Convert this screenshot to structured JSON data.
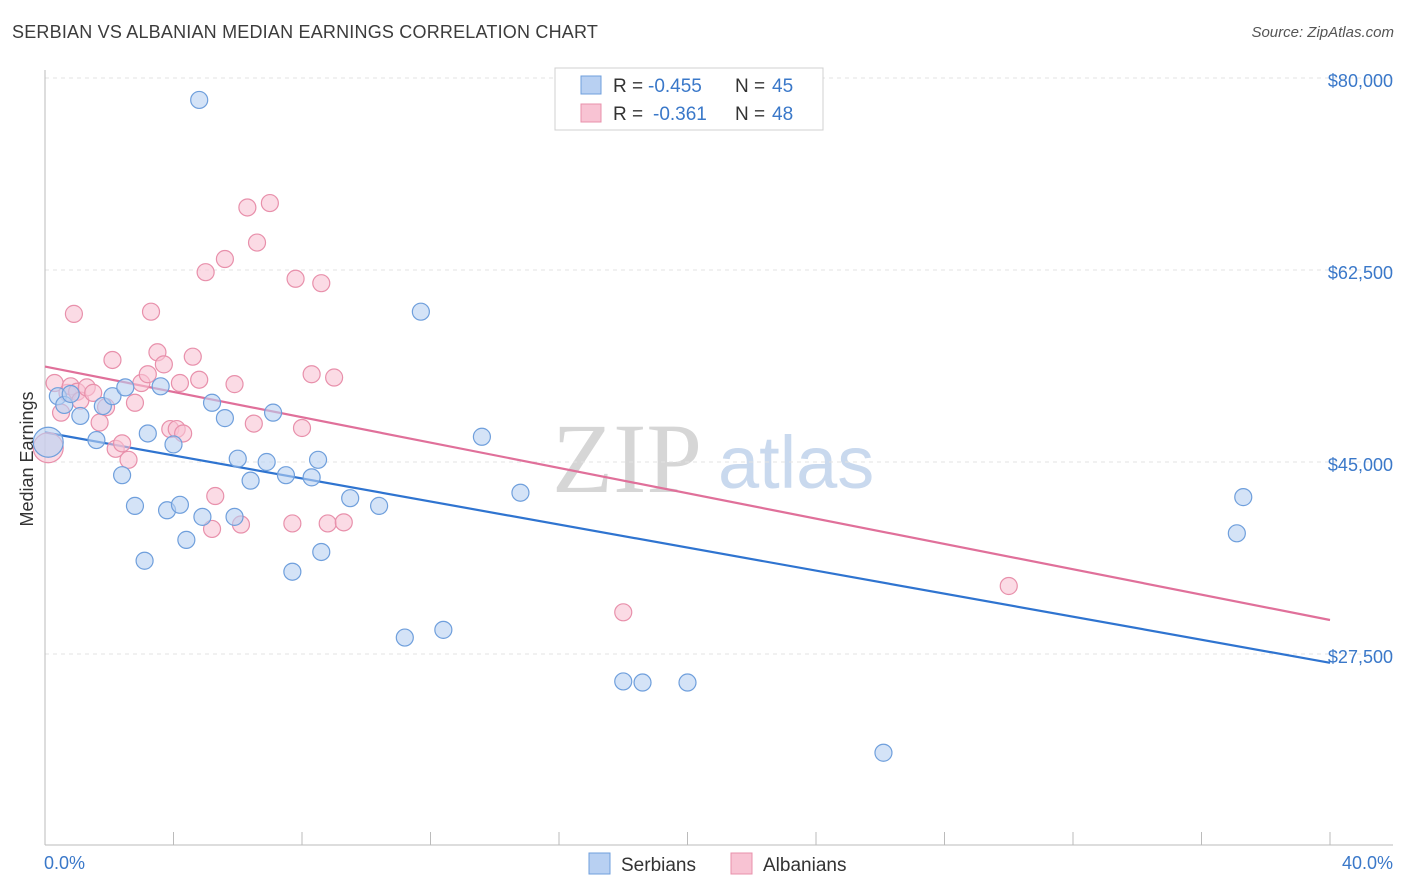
{
  "header": {
    "title": "SERBIAN VS ALBANIAN MEDIAN EARNINGS CORRELATION CHART",
    "source": "Source: ZipAtlas.com"
  },
  "colors": {
    "serbians_fill": "#b8d0f2",
    "serbians_stroke": "#6f9fdc",
    "serbians_line": "#2f74d0",
    "albanians_fill": "#f8c3d3",
    "albanians_stroke": "#e890ab",
    "albanians_line": "#e0709a",
    "tick_text": "#3a78c9",
    "grid": "#e3e3e3"
  },
  "legend": {
    "rows": [
      {
        "r_label": "R =",
        "r_value": "-0.455",
        "n_label": "N =",
        "n_value": "45"
      },
      {
        "r_label": "R =",
        "r_value": "-0.361",
        "n_label": "N =",
        "n_value": "48"
      }
    ]
  },
  "bottom_legend": {
    "serbians": "Serbians",
    "albanians": "Albanians"
  },
  "watermark": {
    "zip": "ZIP",
    "atlas": "atlas"
  },
  "chart_data": {
    "type": "scatter",
    "title": "SERBIAN VS ALBANIAN MEDIAN EARNINGS CORRELATION CHART",
    "xlabel": "",
    "ylabel": "Median Earnings",
    "xlim": [
      0,
      40
    ],
    "ylim": [
      12500,
      82500
    ],
    "x_tick_labels": [
      "0.0%",
      "40.0%"
    ],
    "y_ticks": [
      27500,
      45000,
      62500,
      80000
    ],
    "y_tick_labels": [
      "$27,500",
      "$45,000",
      "$62,500",
      "$80,000"
    ],
    "grid": true,
    "legend_position": "top-center",
    "series": [
      {
        "name": "Serbians",
        "r": -0.455,
        "n": 45,
        "trend": {
          "x": [
            0,
            40
          ],
          "y": [
            47700,
            26700
          ]
        },
        "points": [
          [
            0.1,
            46800
          ],
          [
            0.4,
            51000
          ],
          [
            0.6,
            50200
          ],
          [
            0.8,
            51200
          ],
          [
            1.1,
            49200
          ],
          [
            1.6,
            47000
          ],
          [
            1.8,
            50100
          ],
          [
            2.1,
            51000
          ],
          [
            2.4,
            43800
          ],
          [
            2.5,
            51800
          ],
          [
            2.8,
            41000
          ],
          [
            3.1,
            36000
          ],
          [
            3.2,
            47600
          ],
          [
            3.6,
            51900
          ],
          [
            3.8,
            40600
          ],
          [
            4.0,
            46600
          ],
          [
            4.2,
            41100
          ],
          [
            4.4,
            37900
          ],
          [
            4.8,
            78000
          ],
          [
            4.9,
            40000
          ],
          [
            5.2,
            50400
          ],
          [
            5.6,
            49000
          ],
          [
            5.9,
            40000
          ],
          [
            6.0,
            45300
          ],
          [
            6.4,
            43300
          ],
          [
            6.9,
            45000
          ],
          [
            7.1,
            49500
          ],
          [
            7.5,
            43800
          ],
          [
            7.7,
            35000
          ],
          [
            8.3,
            43600
          ],
          [
            8.5,
            45200
          ],
          [
            8.6,
            36800
          ],
          [
            9.5,
            41700
          ],
          [
            10.4,
            41000
          ],
          [
            11.2,
            29000
          ],
          [
            11.7,
            58700
          ],
          [
            12.4,
            29700
          ],
          [
            13.6,
            47300
          ],
          [
            14.8,
            42200
          ],
          [
            18.0,
            25000
          ],
          [
            18.6,
            24900
          ],
          [
            20.0,
            24900
          ],
          [
            26.1,
            18500
          ],
          [
            37.1,
            38500
          ],
          [
            37.3,
            41800
          ]
        ]
      },
      {
        "name": "Albanians",
        "r": -0.361,
        "n": 48,
        "trend": {
          "x": [
            0,
            40
          ],
          "y": [
            53700,
            30600
          ]
        },
        "points": [
          [
            0.1,
            46300
          ],
          [
            0.3,
            52200
          ],
          [
            0.5,
            49500
          ],
          [
            0.7,
            51300
          ],
          [
            0.8,
            51900
          ],
          [
            0.9,
            58500
          ],
          [
            1.0,
            51400
          ],
          [
            1.1,
            50600
          ],
          [
            1.3,
            51800
          ],
          [
            1.5,
            51300
          ],
          [
            1.7,
            48600
          ],
          [
            1.9,
            50000
          ],
          [
            2.1,
            54300
          ],
          [
            2.2,
            46200
          ],
          [
            2.4,
            46700
          ],
          [
            2.6,
            45200
          ],
          [
            2.8,
            50400
          ],
          [
            3.0,
            52200
          ],
          [
            3.2,
            53000
          ],
          [
            3.3,
            58700
          ],
          [
            3.5,
            55000
          ],
          [
            3.7,
            53900
          ],
          [
            3.9,
            48000
          ],
          [
            4.1,
            48000
          ],
          [
            4.2,
            52200
          ],
          [
            4.3,
            47600
          ],
          [
            4.6,
            54600
          ],
          [
            4.8,
            52500
          ],
          [
            5.0,
            62300
          ],
          [
            5.2,
            38900
          ],
          [
            5.3,
            41900
          ],
          [
            5.6,
            63500
          ],
          [
            5.9,
            52100
          ],
          [
            6.1,
            39300
          ],
          [
            6.3,
            68200
          ],
          [
            6.5,
            48500
          ],
          [
            6.6,
            65000
          ],
          [
            7.0,
            68600
          ],
          [
            7.7,
            39400
          ],
          [
            7.8,
            61700
          ],
          [
            8.0,
            48100
          ],
          [
            8.3,
            53000
          ],
          [
            8.6,
            61300
          ],
          [
            8.8,
            39400
          ],
          [
            9.0,
            52700
          ],
          [
            9.3,
            39500
          ],
          [
            18.0,
            31300
          ],
          [
            30.0,
            33700
          ]
        ]
      }
    ]
  }
}
